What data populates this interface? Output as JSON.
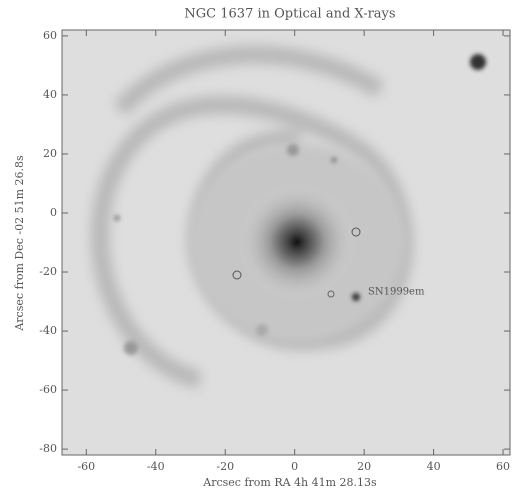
{
  "chart_data": {
    "type": "image",
    "title": "NGC 1637 in Optical and X-rays",
    "x_label": "Arcsec from RA 4h 41m 28.13s",
    "y_label": "Arcsec from Dec -02 51m 26.8s",
    "annotation": "SN1999em",
    "xlim": [
      -67,
      62
    ],
    "ylim": [
      -82,
      62
    ],
    "xticks": [
      -60,
      -40,
      -20,
      0,
      20,
      40,
      60
    ],
    "yticks": [
      -80,
      -60,
      -40,
      -20,
      0,
      20,
      40,
      60
    ]
  }
}
